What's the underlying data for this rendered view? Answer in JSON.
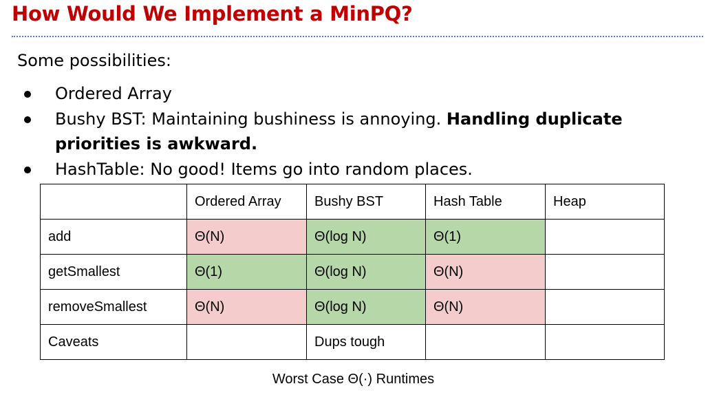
{
  "slide": {
    "title": "How Would We Implement a MinPQ?",
    "intro": "Some possibilities:",
    "bullets": [
      {
        "text": "Ordered Array",
        "bold": ""
      },
      {
        "text": "Bushy BST: Maintaining bushiness is annoying. ",
        "bold": "Handling duplicate priorities is awkward."
      },
      {
        "text": "HashTable: No good! Items go into random places.",
        "bold": ""
      }
    ]
  },
  "table": {
    "headers": [
      "",
      "Ordered Array",
      "Bushy BST",
      "Hash Table",
      "Heap"
    ],
    "rows": [
      {
        "label": "add",
        "cells": [
          "Θ(N)",
          "Θ(log N)",
          "Θ(1)",
          ""
        ]
      },
      {
        "label": "getSmallest",
        "cells": [
          "Θ(1)",
          "Θ(log N)",
          "Θ(N)",
          ""
        ]
      },
      {
        "label": "removeSmallest",
        "cells": [
          "Θ(N)",
          "Θ(log N)",
          "Θ(N)",
          ""
        ]
      },
      {
        "label": "Caveats",
        "cells": [
          "",
          "Dups tough",
          "",
          ""
        ]
      }
    ],
    "caption": "Worst Case Θ(·) Runtimes"
  },
  "colors": {
    "title": "#c00000",
    "good": "#b6d7a8",
    "bad": "#f4cccc",
    "rule": "#4a7fd0"
  }
}
